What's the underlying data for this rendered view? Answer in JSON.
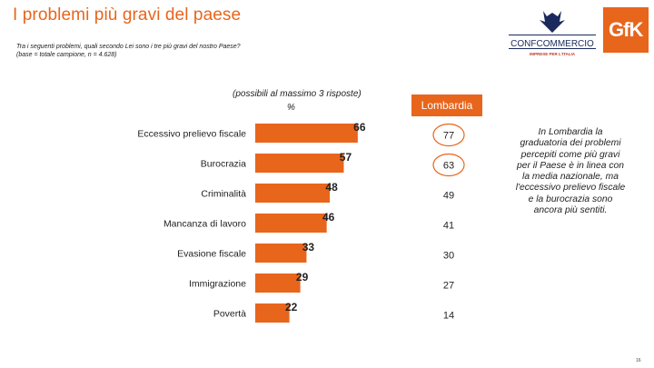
{
  "header": {
    "title": "I problemi più gravi del paese",
    "question": "Tra i seguenti problemi, quali secondo Lei sono i tre più gravi del nostro Paese?",
    "base": "(base = totale campione, n = 4.628)"
  },
  "logos": {
    "confcommercio_name": "CONFCOMMERCIO",
    "confcommercio_tagline": "IMPRESE PER L'ITALIA",
    "gfk": "GfK"
  },
  "chart_note": "(possibili al massimo 3 risposte)",
  "unit": "%",
  "region": {
    "label": "Lombardia",
    "values": [
      77,
      63,
      49,
      41,
      30,
      27,
      14
    ]
  },
  "callout": "In Lombardia la graduatoria dei problemi percepiti come più gravi per il Paese è in linea con la media nazionale, ma l'eccessivo prelievo fiscale e la burocrazia sono ancora più sentiti.",
  "page_number": "16",
  "colors": {
    "accent": "#e8651c",
    "region_circle": "#e8651c"
  },
  "chart_data": {
    "type": "bar",
    "orientation": "horizontal",
    "categories": [
      "Eccessivo prelievo fiscale",
      "Burocrazia",
      "Criminalità",
      "Mancanza di lavoro",
      "Evasione fiscale",
      "Immigrazione",
      "Povertà"
    ],
    "values": [
      66,
      57,
      48,
      46,
      33,
      29,
      22
    ],
    "xlim": [
      0,
      100
    ],
    "grid": false,
    "highlighted_region_values": [
      77,
      63
    ]
  }
}
